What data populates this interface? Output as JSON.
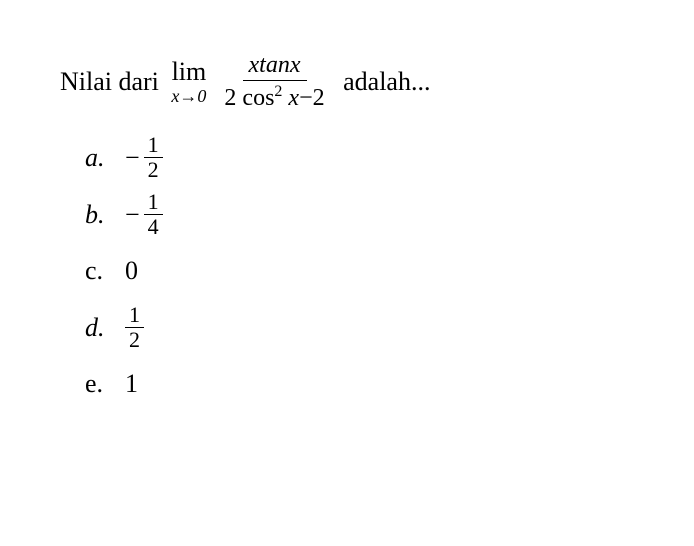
{
  "question": {
    "prefix": "Nilai dari",
    "limit_word": "lim",
    "limit_sub_var": "x",
    "limit_sub_arrow": "→",
    "limit_sub_val": "0",
    "frac_num": "xtanx",
    "frac_den_part1": "2 cos",
    "frac_den_exp": "2",
    "frac_den_part2": " x",
    "frac_den_part3": "−2",
    "suffix": "adalah..."
  },
  "options": {
    "a": {
      "label": "a.",
      "sign": "−",
      "num": "1",
      "den": "2",
      "label_italic": true
    },
    "b": {
      "label": "b.",
      "sign": "−",
      "num": "1",
      "den": "4",
      "label_italic": true
    },
    "c": {
      "label": "c.",
      "value": "0",
      "label_italic": false
    },
    "d": {
      "label": "d.",
      "num": "1",
      "den": "2",
      "label_italic": true
    },
    "e": {
      "label": "e.",
      "value": "1",
      "label_italic": false
    }
  },
  "style": {
    "background_color": "#ffffff",
    "text_color": "#000000",
    "font_family": "Times New Roman",
    "question_fontsize": 26,
    "option_fontsize": 26,
    "fraction_fontsize": 22
  }
}
